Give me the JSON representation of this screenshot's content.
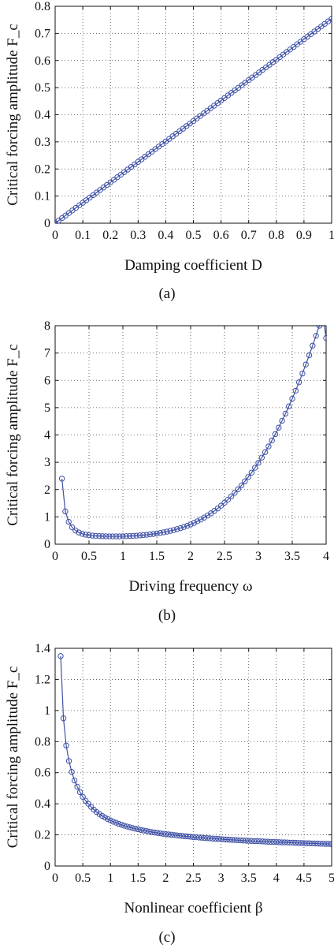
{
  "colors": {
    "series": "#3f51a5",
    "grid": "#444444",
    "axis": "#111111"
  },
  "chart_data": [
    {
      "type": "line",
      "title": "",
      "xlabel": "Damping coefficient D",
      "ylabel": "Critical forcing amplitude F_c",
      "caption": "(a)",
      "xlim": [
        0,
        1
      ],
      "ylim": [
        0,
        0.8
      ],
      "xticks": [
        0,
        0.1,
        0.2,
        0.3,
        0.4,
        0.5,
        0.6,
        0.7,
        0.8,
        0.9,
        1
      ],
      "yticks": [
        0,
        0.1,
        0.2,
        0.3,
        0.4,
        0.5,
        0.6,
        0.7,
        0.8
      ],
      "xtick_labels": [
        "0",
        "0.1",
        "0.2",
        "0.3",
        "0.4",
        "0.5",
        "0.6",
        "0.7",
        "0.8",
        "0.9",
        "1"
      ],
      "ytick_labels": [
        "0",
        "0.1",
        "0.2",
        "0.3",
        "0.4",
        "0.5",
        "0.6",
        "0.7",
        "0.8"
      ],
      "grid": true,
      "marker": "circle",
      "x": [
        0,
        0.0125,
        0.025,
        0.0375,
        0.05,
        0.0625,
        0.075,
        0.0875,
        0.1,
        0.1125,
        0.125,
        0.1375,
        0.15,
        0.1625,
        0.175,
        0.1875,
        0.2,
        0.2125,
        0.225,
        0.2375,
        0.25,
        0.2625,
        0.275,
        0.2875,
        0.3,
        0.3125,
        0.325,
        0.3375,
        0.35,
        0.3625,
        0.375,
        0.3875,
        0.4,
        0.4125,
        0.425,
        0.4375,
        0.45,
        0.4625,
        0.475,
        0.4875,
        0.5,
        0.5125,
        0.525,
        0.5375,
        0.55,
        0.5625,
        0.575,
        0.5875,
        0.6,
        0.6125,
        0.625,
        0.6375,
        0.65,
        0.6625,
        0.675,
        0.6875,
        0.7,
        0.7125,
        0.725,
        0.7375,
        0.75,
        0.7625,
        0.775,
        0.7875,
        0.8,
        0.8125,
        0.825,
        0.8375,
        0.85,
        0.8625,
        0.875,
        0.8875,
        0.9,
        0.9125,
        0.925,
        0.9375,
        0.95,
        0.9625,
        0.975,
        0.9875,
        1
      ],
      "y": [
        0.0,
        0.0094,
        0.0189,
        0.0283,
        0.0377,
        0.0471,
        0.0566,
        0.066,
        0.0754,
        0.0848,
        0.0943,
        0.1037,
        0.1131,
        0.1225,
        0.132,
        0.1414,
        0.1508,
        0.1602,
        0.1697,
        0.1791,
        0.1885,
        0.1979,
        0.2074,
        0.2168,
        0.2262,
        0.2356,
        0.2451,
        0.2545,
        0.2639,
        0.2733,
        0.2828,
        0.2922,
        0.3016,
        0.311,
        0.3205,
        0.3299,
        0.3393,
        0.3487,
        0.3582,
        0.3676,
        0.377,
        0.3864,
        0.3959,
        0.4053,
        0.4147,
        0.4241,
        0.4336,
        0.443,
        0.4524,
        0.4618,
        0.4713,
        0.4807,
        0.4901,
        0.4995,
        0.509,
        0.5184,
        0.5278,
        0.5372,
        0.5467,
        0.5561,
        0.5655,
        0.5749,
        0.5844,
        0.5938,
        0.6032,
        0.6126,
        0.6221,
        0.6315,
        0.6409,
        0.6503,
        0.6598,
        0.6692,
        0.6786,
        0.688,
        0.6975,
        0.7069,
        0.7163,
        0.7257,
        0.7352,
        0.7446,
        0.754
      ]
    },
    {
      "type": "line",
      "title": "",
      "xlabel": "Driving frequency ω",
      "ylabel": "Critical forcing amplitude F_c",
      "caption": "(b)",
      "xlim": [
        0,
        4
      ],
      "ylim": [
        0,
        8
      ],
      "xticks": [
        0,
        0.5,
        1,
        1.5,
        2,
        2.5,
        3,
        3.5,
        4
      ],
      "yticks": [
        0,
        1,
        2,
        3,
        4,
        5,
        6,
        7,
        8
      ],
      "xtick_labels": [
        "0",
        "0.5",
        "1",
        "1.5",
        "2",
        "2.5",
        "3",
        "3.5",
        "4"
      ],
      "ytick_labels": [
        "0",
        "1",
        "2",
        "3",
        "4",
        "5",
        "6",
        "7",
        "8"
      ],
      "grid": true,
      "marker": "circle",
      "x": [
        0.1,
        0.15,
        0.2,
        0.25,
        0.3,
        0.35,
        0.4,
        0.45,
        0.5,
        0.55,
        0.6,
        0.65,
        0.7,
        0.75,
        0.8,
        0.85,
        0.9,
        0.95,
        1.0,
        1.05,
        1.1,
        1.15,
        1.2,
        1.25,
        1.3,
        1.35,
        1.4,
        1.45,
        1.5,
        1.55,
        1.6,
        1.65,
        1.7,
        1.75,
        1.8,
        1.85,
        1.9,
        1.95,
        2.0,
        2.05,
        2.1,
        2.15,
        2.2,
        2.25,
        2.3,
        2.35,
        2.4,
        2.45,
        2.5,
        2.55,
        2.6,
        2.65,
        2.7,
        2.75,
        2.8,
        2.85,
        2.9,
        2.95,
        3.0,
        3.05,
        3.1,
        3.15,
        3.2,
        3.25,
        3.3,
        3.35,
        3.4,
        3.45,
        3.5,
        3.55,
        3.6,
        3.65,
        3.7,
        3.75,
        3.8,
        3.85,
        3.9,
        3.95,
        4.0
      ],
      "y": [
        2.4,
        1.2,
        0.82,
        0.62,
        0.5,
        0.43,
        0.38,
        0.35,
        0.33,
        0.315,
        0.305,
        0.298,
        0.293,
        0.29,
        0.288,
        0.287,
        0.287,
        0.288,
        0.29,
        0.294,
        0.299,
        0.305,
        0.313,
        0.322,
        0.333,
        0.345,
        0.359,
        0.375,
        0.393,
        0.413,
        0.435,
        0.46,
        0.488,
        0.518,
        0.552,
        0.589,
        0.63,
        0.675,
        0.725,
        0.78,
        0.84,
        0.905,
        0.975,
        1.05,
        1.13,
        1.22,
        1.31,
        1.41,
        1.52,
        1.63,
        1.75,
        1.88,
        2.01,
        2.15,
        2.3,
        2.46,
        2.62,
        2.8,
        2.98,
        3.17,
        3.37,
        3.58,
        3.8,
        4.03,
        4.27,
        4.52,
        4.78,
        5.05,
        5.33,
        5.62,
        5.93,
        6.25,
        6.58,
        6.92,
        7.27,
        7.63,
        8.0,
        8.4,
        7.55
      ]
    },
    {
      "type": "line",
      "title": "",
      "xlabel": "Nonlinear coefficient β",
      "ylabel": "Critical forcing amplitude F_c",
      "caption": "(c)",
      "xlim": [
        0,
        5
      ],
      "ylim": [
        0,
        1.4
      ],
      "xticks": [
        0,
        0.5,
        1,
        1.5,
        2,
        2.5,
        3,
        3.5,
        4,
        4.5,
        5
      ],
      "yticks": [
        0,
        0.2,
        0.4,
        0.6,
        0.8,
        1,
        1.2,
        1.4
      ],
      "xtick_labels": [
        "0",
        "0.5",
        "1",
        "1.5",
        "2",
        "2.5",
        "3",
        "3.5",
        "4",
        "4.5",
        "5"
      ],
      "ytick_labels": [
        "0",
        "0.2",
        "0.4",
        "0.6",
        "0.8",
        "1",
        "1.2",
        "1.4"
      ],
      "grid": true,
      "marker": "circle",
      "x": [
        0.1,
        0.15,
        0.2,
        0.25,
        0.3,
        0.35,
        0.4,
        0.45,
        0.5,
        0.55,
        0.6,
        0.65,
        0.7,
        0.75,
        0.8,
        0.85,
        0.9,
        0.95,
        1.0,
        1.05,
        1.1,
        1.15,
        1.2,
        1.25,
        1.3,
        1.35,
        1.4,
        1.45,
        1.5,
        1.55,
        1.6,
        1.65,
        1.7,
        1.75,
        1.8,
        1.85,
        1.9,
        1.95,
        2.0,
        2.05,
        2.1,
        2.15,
        2.2,
        2.25,
        2.3,
        2.35,
        2.4,
        2.45,
        2.5,
        2.55,
        2.6,
        2.65,
        2.7,
        2.75,
        2.8,
        2.85,
        2.9,
        2.95,
        3.0,
        3.05,
        3.1,
        3.15,
        3.2,
        3.25,
        3.3,
        3.35,
        3.4,
        3.45,
        3.5,
        3.55,
        3.6,
        3.65,
        3.7,
        3.75,
        3.8,
        3.85,
        3.9,
        3.95,
        4.0,
        4.05,
        4.1,
        4.15,
        4.2,
        4.25,
        4.3,
        4.35,
        4.4,
        4.45,
        4.5,
        4.55,
        4.6,
        4.65,
        4.7,
        4.75,
        4.8,
        4.85,
        4.9,
        4.95,
        5.0
      ],
      "y": [
        1.35,
        0.95,
        0.775,
        0.675,
        0.605,
        0.55,
        0.51,
        0.475,
        0.445,
        0.42,
        0.4,
        0.38,
        0.362,
        0.347,
        0.334,
        0.322,
        0.312,
        0.302,
        0.293,
        0.285,
        0.278,
        0.271,
        0.265,
        0.259,
        0.254,
        0.249,
        0.244,
        0.24,
        0.236,
        0.232,
        0.228,
        0.225,
        0.221,
        0.218,
        0.215,
        0.213,
        0.21,
        0.207,
        0.205,
        0.203,
        0.201,
        0.199,
        0.197,
        0.195,
        0.193,
        0.191,
        0.19,
        0.188,
        0.186,
        0.185,
        0.183,
        0.182,
        0.18,
        0.179,
        0.178,
        0.176,
        0.175,
        0.174,
        0.173,
        0.171,
        0.17,
        0.169,
        0.168,
        0.167,
        0.166,
        0.165,
        0.164,
        0.163,
        0.162,
        0.161,
        0.16,
        0.16,
        0.159,
        0.158,
        0.157,
        0.156,
        0.155,
        0.155,
        0.154,
        0.153,
        0.152,
        0.152,
        0.151,
        0.15,
        0.15,
        0.149,
        0.148,
        0.148,
        0.147,
        0.146,
        0.146,
        0.145,
        0.145,
        0.144,
        0.143,
        0.143,
        0.142,
        0.142,
        0.141
      ]
    }
  ]
}
